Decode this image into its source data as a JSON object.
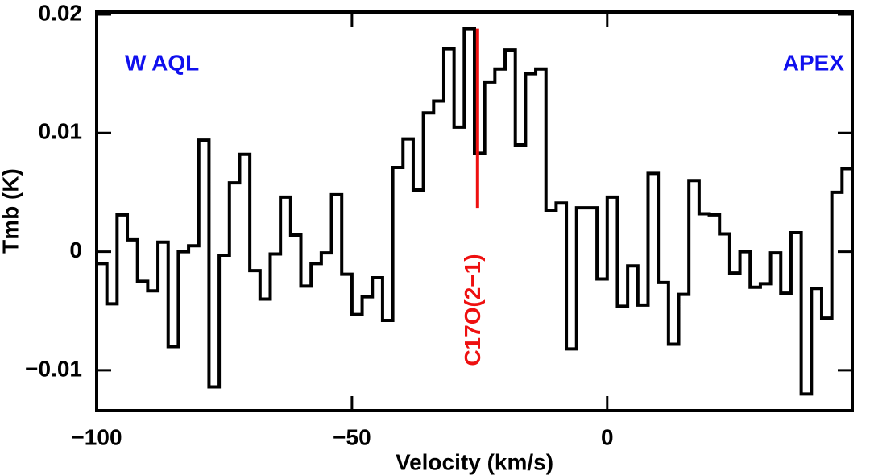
{
  "chart_data": {
    "type": "step",
    "xlabel": "Velocity (km/s)",
    "ylabel": "Tmb (K)",
    "texts": [
      {
        "text": "W AQL",
        "color": "#1010ee"
      },
      {
        "text": "APEX",
        "color": "#1010ee"
      }
    ],
    "annotation": {
      "text": "C17O(2−1)",
      "color": "#ee1010",
      "x": -25.4,
      "y_top": 0.0188,
      "y_bottom": 0.0037
    },
    "x": [
      -99,
      -97,
      -95,
      -93,
      -91,
      -89,
      -87,
      -85,
      -83,
      -81,
      -79,
      -77,
      -75,
      -73,
      -71,
      -69,
      -67,
      -65,
      -63,
      -61,
      -59,
      -57,
      -55,
      -53,
      -51,
      -49,
      -47,
      -45,
      -43,
      -41,
      -39,
      -37,
      -35,
      -33,
      -31,
      -29,
      -27,
      -25,
      -23,
      -21,
      -19,
      -17,
      -15,
      -13,
      -11,
      -9,
      -7,
      -5,
      -3,
      -1,
      1,
      3,
      5,
      7,
      9,
      11,
      13,
      15,
      17,
      19,
      21,
      23,
      25,
      27,
      29,
      31,
      33,
      35,
      37,
      39,
      41,
      43,
      45,
      47
    ],
    "series": [
      {
        "name": "spectrum",
        "color": "#000000",
        "values": [
          -0.001,
          -0.0044,
          0.0031,
          0.001,
          -0.0025,
          -0.0033,
          0.0008,
          -0.008,
          0,
          0.0005,
          0.0094,
          -0.0114,
          -0.0003,
          0.0058,
          0.0082,
          -0.0016,
          -0.004,
          -0.0002,
          0.0046,
          0.0014,
          -0.0029,
          -0.001,
          -0.0001,
          0.0048,
          -0.0019,
          -0.0053,
          -0.0038,
          -0.0022,
          -0.0058,
          0.0071,
          0.0095,
          0.0052,
          0.0117,
          0.0127,
          0.0171,
          0.0105,
          0.0188,
          0.0083,
          0.0143,
          0.0154,
          0.017,
          0.009,
          0.015,
          0.0154,
          0.0035,
          0.0041,
          -0.0082,
          0.0037,
          0.0037,
          -0.0023,
          0.0046,
          -0.0046,
          -0.0012,
          -0.0045,
          0.0066,
          -0.0026,
          -0.0078,
          -0.0036,
          0.006,
          0.0032,
          0.0031,
          0.0015,
          -0.0018,
          0,
          -0.003,
          -0.0027,
          -0.0001,
          -0.0035,
          0.0016,
          -0.012,
          -0.0031,
          -0.0056,
          0.005,
          0.007
        ]
      }
    ],
    "xlim": [
      -100,
      48
    ],
    "ylim": [
      -0.0134,
      0.0202
    ],
    "xticks": [
      {
        "value": -100,
        "label": "−100"
      },
      {
        "value": -50,
        "label": "−50"
      },
      0
    ],
    "yticks": [
      0.02,
      0.01,
      0,
      {
        "value": -0.01,
        "label": "−0.01"
      }
    ]
  }
}
